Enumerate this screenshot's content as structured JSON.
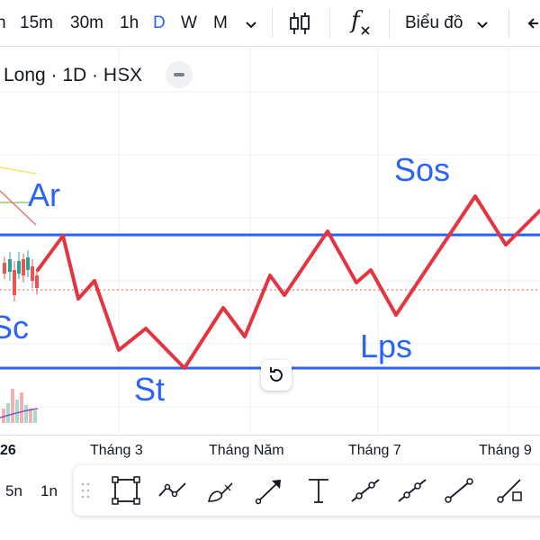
{
  "toolbar": {
    "intervals": [
      "n",
      "15m",
      "30m",
      "1h",
      "D",
      "W",
      "M"
    ],
    "active_interval": "D",
    "indicator_glyph": "f",
    "chart_type_label": "Biểu đồ",
    "icons": [
      "chevron-down-icon",
      "candlestick-icon",
      "indicators-icon",
      "undo-icon"
    ]
  },
  "symbol": {
    "title": "Long · 1D · HSX"
  },
  "annotations": {
    "ar": "Ar",
    "sc": "Sc",
    "st": "St",
    "sos": "Sos",
    "lps": "Lps"
  },
  "time_axis": {
    "year_fragment": "26",
    "labels": [
      "Tháng 3",
      "Tháng Năm",
      "Tháng 7",
      "Tháng 9"
    ]
  },
  "range": {
    "a": "5n",
    "b": "1n"
  },
  "colors": {
    "wyckoff_line": "#e53340",
    "level_line": "#2962ff",
    "annotation_text": "#2962ff",
    "active_interval": "#2962ff"
  },
  "drawing_tools": [
    "rectangle-tool-icon",
    "path-tool-icon",
    "brush-tool-icon",
    "arrow-tool-icon",
    "text-tool-icon",
    "trend-line-tool-icon",
    "ray-tool-icon",
    "line-tool-icon",
    "extended-line-tool-icon"
  ]
}
